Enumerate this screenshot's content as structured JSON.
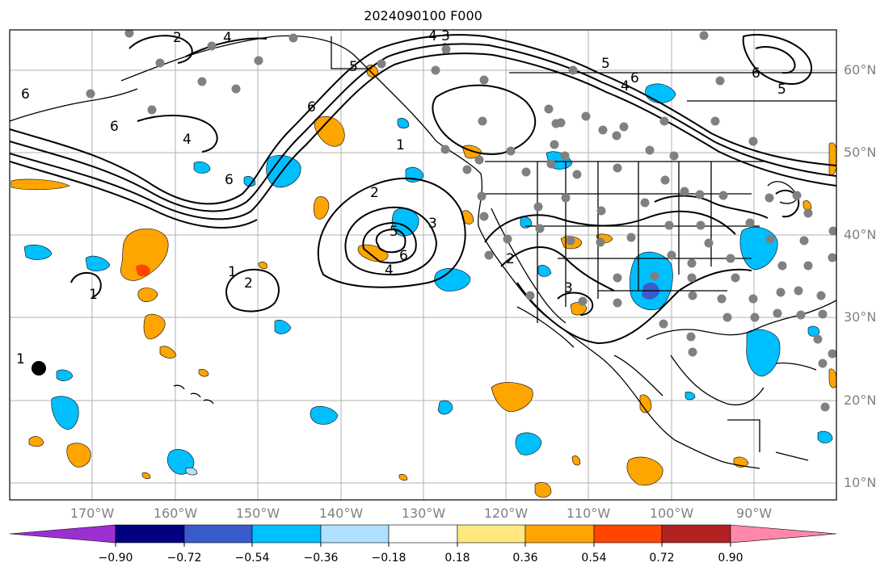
{
  "title": "2024090100 F000",
  "lat_labels": [
    "60°N",
    "50°N",
    "40°N",
    "30°N",
    "20°N",
    "10°N"
  ],
  "lon_labels": [
    "170°W",
    "160°W",
    "150°W",
    "140°W",
    "130°W",
    "120°W",
    "110°W",
    "100°W",
    "90°W"
  ],
  "colorbar": {
    "ticks": [
      "−0.90",
      "−0.72",
      "−0.54",
      "−0.36",
      "−0.18",
      "0.18",
      "0.36",
      "0.54",
      "0.72",
      "0.90"
    ],
    "colors": [
      "#9b30d0",
      "#000080",
      "#3a5bcc",
      "#00bfff",
      "#b0e0ff",
      "#ffffff",
      "#ffe97f",
      "#ffa500",
      "#ff4500",
      "#b22222",
      "#ff88aa"
    ]
  },
  "contour_labels": [
    "1",
    "2",
    "3",
    "4",
    "5",
    "6"
  ]
}
